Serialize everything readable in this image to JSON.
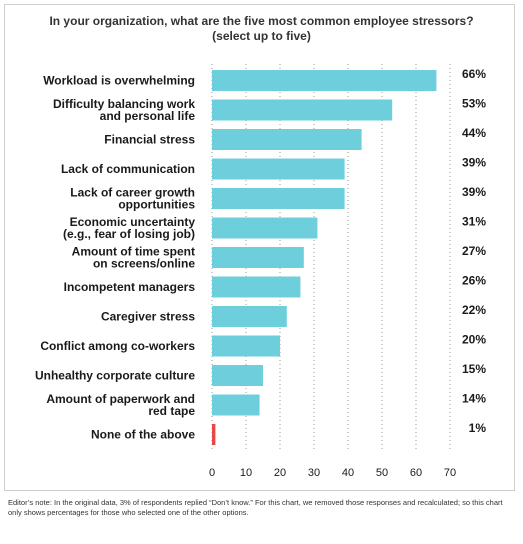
{
  "chart_data": {
    "type": "bar",
    "orientation": "horizontal",
    "title": "In your organization, what are the five most common employee stressors?",
    "subtitle": "(select up to five)",
    "categories": [
      [
        "Workload is overwhelming"
      ],
      [
        "Difficulty balancing work",
        "and personal life"
      ],
      [
        "Financial stress"
      ],
      [
        "Lack of communication"
      ],
      [
        "Lack of career growth",
        "opportunities"
      ],
      [
        "Economic uncertainty",
        "(e.g., fear of losing job)"
      ],
      [
        "Amount of time spent",
        "on screens/online"
      ],
      [
        "Incompetent managers"
      ],
      [
        "Caregiver stress"
      ],
      [
        "Conflict among co-workers"
      ],
      [
        "Unhealthy corporate culture"
      ],
      [
        "Amount of paperwork and",
        "red tape"
      ],
      [
        "None of the above"
      ]
    ],
    "values": [
      66,
      53,
      44,
      39,
      39,
      31,
      27,
      26,
      22,
      20,
      15,
      14,
      1
    ],
    "value_labels": [
      "66%",
      "53%",
      "44%",
      "39%",
      "39%",
      "31%",
      "27%",
      "26%",
      "22%",
      "20%",
      "15%",
      "14%",
      "1%"
    ],
    "bar_colors": [
      "#6dcfdb",
      "#6dcfdb",
      "#6dcfdb",
      "#6dcfdb",
      "#6dcfdb",
      "#6dcfdb",
      "#6dcfdb",
      "#6dcfdb",
      "#6dcfdb",
      "#6dcfdb",
      "#6dcfdb",
      "#6dcfdb",
      "#e8474a"
    ],
    "xlim": [
      0,
      70
    ],
    "xticks": [
      0,
      10,
      20,
      30,
      40,
      50,
      60,
      70
    ],
    "grid": true,
    "xlabel": "",
    "ylabel": ""
  },
  "note": "Editor’s note: In the original data, 3% of respondents replied “Don’t know.” For this chart, we removed those responses and recalculated; so this chart only shows percentages for those who selected one of the other options."
}
